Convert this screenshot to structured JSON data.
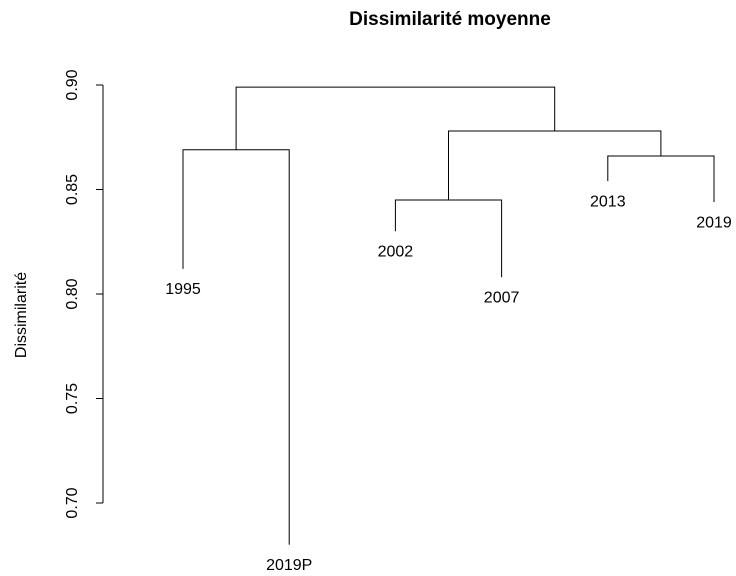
{
  "chart_data": {
    "type": "dendrogram",
    "title": "Dissimilarité moyenne",
    "ylabel": "Dissimilarité",
    "labels": [
      "1995",
      "2019P",
      "2002",
      "2007",
      "2013",
      "2019"
    ],
    "leaf_heights": [
      0.812,
      0.68,
      0.83,
      0.808,
      0.854,
      0.844
    ],
    "merge": [
      [
        -3,
        -4
      ],
      [
        -5,
        -6
      ],
      [
        -1,
        -2
      ],
      [
        1,
        2
      ],
      [
        3,
        4
      ]
    ],
    "height": [
      0.845,
      0.866,
      0.869,
      0.878,
      0.899
    ],
    "color": "#000000",
    "ylim": [
      0.68,
      0.9
    ],
    "yticks": [
      {
        "value": 0.7,
        "label": "0.70"
      },
      0.75,
      {
        "value": 0.8,
        "label": "0.80"
      },
      0.85,
      {
        "value": 0.9,
        "label": "0.90"
      }
    ]
  }
}
